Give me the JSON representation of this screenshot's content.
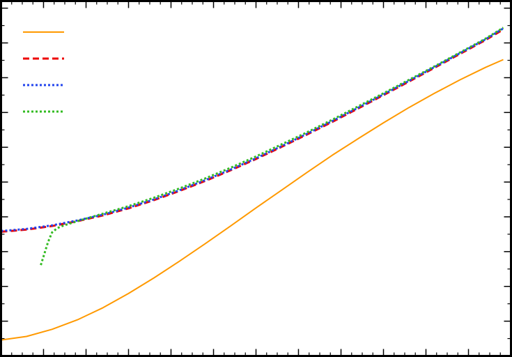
{
  "chart_data": {
    "type": "line",
    "title": "",
    "xlabel": "",
    "ylabel": "",
    "xlim": [
      0,
      100
    ],
    "ylim": [
      0,
      100
    ],
    "grid": false,
    "legend": {
      "position": "top-left",
      "show_text": false
    },
    "axes": {
      "ticks_inward": true,
      "mirror_ticks": true,
      "x_major_ticks": [
        0,
        8.33,
        16.67,
        25,
        33.33,
        41.67,
        50,
        58.33,
        66.67,
        75,
        83.33,
        91.67,
        100
      ],
      "y_major_ticks": [
        0,
        9.8,
        19.6,
        29.4,
        39.2,
        49,
        58.8,
        68.6,
        78.4,
        88.2,
        98
      ]
    },
    "series": [
      {
        "color": "#FF9900",
        "dash": "solid",
        "width": 2,
        "x": [
          0,
          5,
          10,
          15,
          20,
          25,
          30,
          35,
          40,
          45,
          50,
          55,
          60,
          65,
          70,
          75,
          80,
          85,
          90,
          95,
          98.5
        ],
        "y": [
          4.5,
          5.5,
          7.5,
          10.2,
          13.6,
          17.6,
          22.0,
          26.7,
          31.6,
          36.6,
          41.7,
          46.7,
          51.7,
          56.6,
          61.2,
          65.7,
          70.0,
          74.0,
          77.8,
          81.3,
          83.5
        ]
      },
      {
        "color": "#EE0000",
        "dash": "dashed",
        "width": 3,
        "x": [
          0,
          5,
          10,
          15,
          20,
          25,
          30,
          35,
          40,
          45,
          50,
          55,
          60,
          65,
          70,
          75,
          80,
          85,
          90,
          95,
          98.5
        ],
        "y": [
          35.0,
          35.6,
          36.6,
          38.0,
          39.6,
          41.6,
          43.9,
          46.5,
          49.3,
          52.3,
          55.5,
          58.9,
          62.4,
          66.0,
          69.7,
          73.5,
          77.3,
          81.2,
          85.1,
          89.0,
          92.0
        ]
      },
      {
        "color": "#2244EE",
        "dash": "dotted",
        "width": 3,
        "x": [
          0,
          5,
          10,
          15,
          20,
          25,
          30,
          35,
          40,
          45,
          50,
          55,
          60,
          65,
          70,
          75,
          80,
          85,
          90,
          95,
          98.5
        ],
        "y": [
          35.2,
          35.8,
          36.8,
          38.2,
          39.8,
          41.8,
          44.1,
          46.7,
          49.5,
          52.5,
          55.7,
          59.1,
          62.6,
          66.2,
          69.9,
          73.7,
          77.5,
          81.4,
          85.3,
          89.2,
          92.3
        ]
      },
      {
        "color": "#33BB22",
        "dash": "dotted",
        "width": 3,
        "x": [
          7.8,
          8.5,
          9.2,
          10,
          11,
          12,
          13,
          15,
          20,
          25,
          30,
          35,
          40,
          45,
          50,
          55,
          60,
          65,
          70,
          75,
          80,
          85,
          90,
          95,
          98.5
        ],
        "y": [
          25.6,
          28.8,
          32.0,
          34.8,
          36.0,
          36.6,
          37.1,
          38.0,
          40.1,
          42.2,
          44.6,
          47.2,
          50.0,
          53.0,
          56.2,
          59.6,
          63.0,
          66.6,
          70.3,
          74.0,
          77.8,
          81.6,
          85.5,
          89.4,
          92.5
        ]
      }
    ]
  }
}
